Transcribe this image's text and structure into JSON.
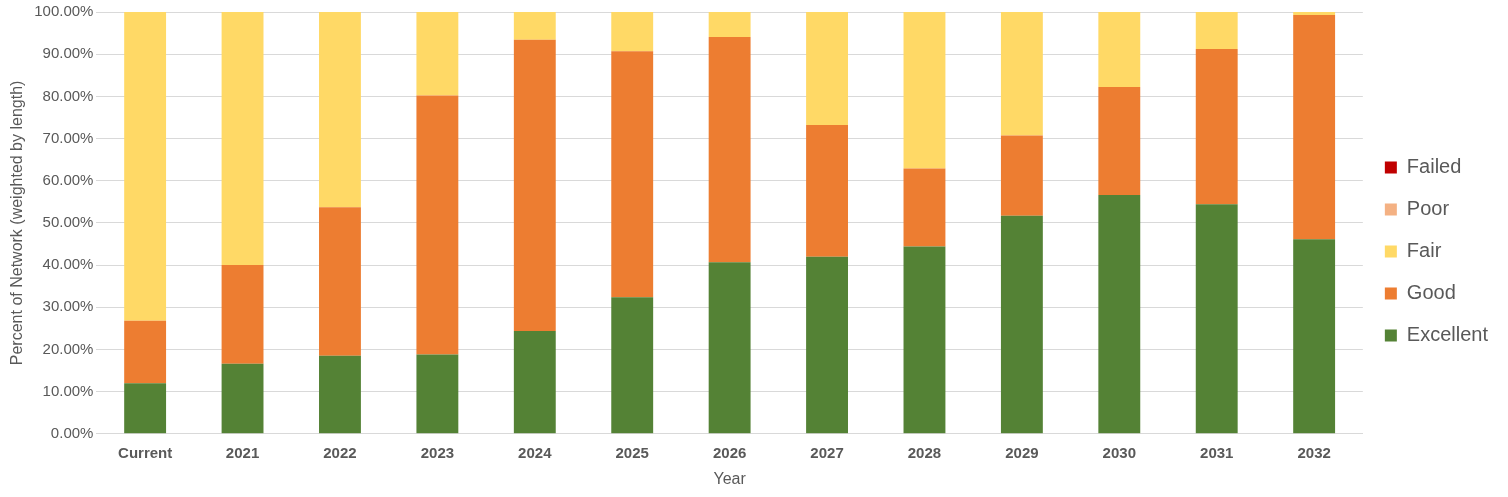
{
  "chart_data": {
    "type": "bar",
    "stacked": true,
    "xlabel": "Year",
    "ylabel": "Percent of Network (weighted by length)",
    "categories": [
      "Current",
      "2021",
      "2022",
      "2023",
      "2024",
      "2025",
      "2026",
      "2027",
      "2028",
      "2029",
      "2030",
      "2031",
      "2032"
    ],
    "series": [
      {
        "name": "Excellent",
        "color": "#548235",
        "values": [
          12.0,
          16.6,
          18.5,
          18.8,
          24.4,
          32.4,
          40.7,
          42.0,
          44.4,
          51.7,
          56.6,
          54.4,
          46.1
        ]
      },
      {
        "name": "Good",
        "color": "#ed7d31",
        "values": [
          14.8,
          23.4,
          35.2,
          61.4,
          69.0,
          58.3,
          53.4,
          31.2,
          18.5,
          19.0,
          25.6,
          36.8,
          53.2
        ]
      },
      {
        "name": "Fair",
        "color": "#ffd966",
        "values": [
          73.2,
          60.0,
          46.3,
          19.8,
          6.6,
          9.3,
          5.9,
          26.8,
          37.1,
          29.3,
          17.8,
          8.8,
          0.7
        ]
      },
      {
        "name": "Poor",
        "color": "#f4b183",
        "values": [
          0,
          0,
          0,
          0,
          0,
          0,
          0,
          0,
          0,
          0,
          0,
          0,
          0
        ]
      },
      {
        "name": "Failed",
        "color": "#c00000",
        "values": [
          0,
          0,
          0,
          0,
          0,
          0,
          0,
          0,
          0,
          0,
          0,
          0,
          0
        ]
      }
    ],
    "ylim": [
      0,
      100
    ],
    "yticks": [
      {
        "value": 0,
        "label": "0.00%"
      },
      {
        "value": 10,
        "label": "10.00%"
      },
      {
        "value": 20,
        "label": "20.00%"
      },
      {
        "value": 30,
        "label": "30.00%"
      },
      {
        "value": 40,
        "label": "40.00%"
      },
      {
        "value": 50,
        "label": "50.00%"
      },
      {
        "value": 60,
        "label": "60.00%"
      },
      {
        "value": 70,
        "label": "70.00%"
      },
      {
        "value": 80,
        "label": "80.00%"
      },
      {
        "value": 90,
        "label": "90.00%"
      },
      {
        "value": 100,
        "label": "100.00%"
      }
    ],
    "grid": "y",
    "legend": "right"
  }
}
